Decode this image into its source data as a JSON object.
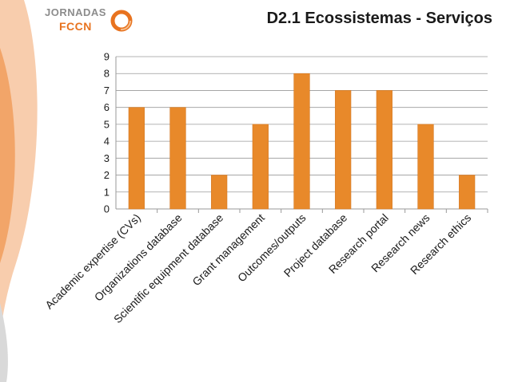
{
  "header": {
    "title": "D2.1 Ecossistemas - Serviços",
    "logo_line1": "JORNADAS",
    "logo_line2": "FCCN"
  },
  "colors": {
    "bar": "#E8892A",
    "bar_edge": "#d47822",
    "grid": "#9a9a9a",
    "deco_orange": "#ef8a3c",
    "brand_orange": "#e8731f"
  },
  "chart_data": {
    "type": "bar",
    "title": "",
    "xlabel": "",
    "ylabel": "",
    "ylim": [
      0,
      9
    ],
    "yticks": [
      0,
      1,
      2,
      3,
      4,
      5,
      6,
      7,
      8,
      9
    ],
    "grid": true,
    "categories": [
      "Academic expertise (CVs)",
      "Organizations database",
      "Scientific equipment database",
      "Grant management",
      "Outcomes/outputs",
      "Project database",
      "Research portal",
      "Research news",
      "Research ethics"
    ],
    "values": [
      6,
      6,
      2,
      5,
      8,
      7,
      7,
      5,
      2
    ]
  }
}
